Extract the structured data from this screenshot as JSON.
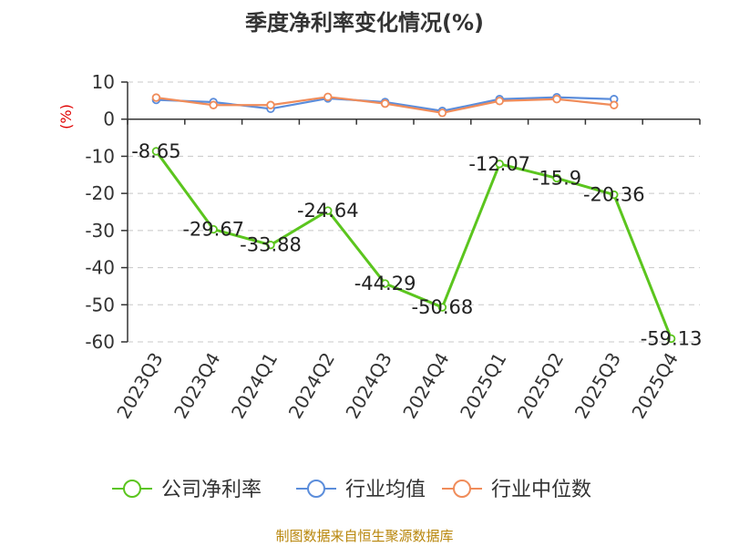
{
  "chart_data": {
    "type": "line",
    "title": "季度净利率变化情况(%)",
    "ylabel": "(%)",
    "categories": [
      "2023Q3",
      "2023Q4",
      "2024Q1",
      "2024Q2",
      "2024Q3",
      "2024Q4",
      "2025Q1",
      "2025Q2",
      "2025Q3",
      "2025Q4"
    ],
    "ylim": [
      -60,
      10
    ],
    "yticks": [
      10,
      0,
      -10,
      -20,
      -30,
      -40,
      -50,
      -60
    ],
    "grid": true,
    "legend_position": "bottom",
    "series": [
      {
        "name": "公司净利率",
        "color": "#5bc51e",
        "values": [
          -8.65,
          -29.67,
          -33.88,
          -24.64,
          -44.29,
          -50.68,
          -12.07,
          -15.9,
          -20.36,
          -59.13
        ],
        "labels": [
          "-8.65",
          "-29.67",
          "-33.88",
          "-24.64",
          "-44.29",
          "-50.68",
          "-12.07",
          "-15.9",
          "-20.36",
          "-59.13"
        ]
      },
      {
        "name": "行业均值",
        "color": "#5b8ddb",
        "values": [
          5.2,
          4.6,
          2.8,
          5.6,
          4.6,
          2.2,
          5.4,
          5.9,
          5.4,
          null
        ]
      },
      {
        "name": "行业中位数",
        "color": "#f08c5a",
        "values": [
          5.8,
          3.8,
          3.8,
          6.0,
          4.2,
          1.7,
          4.9,
          5.4,
          3.8,
          null
        ]
      }
    ]
  },
  "source": "制图数据来自恒生聚源数据库"
}
